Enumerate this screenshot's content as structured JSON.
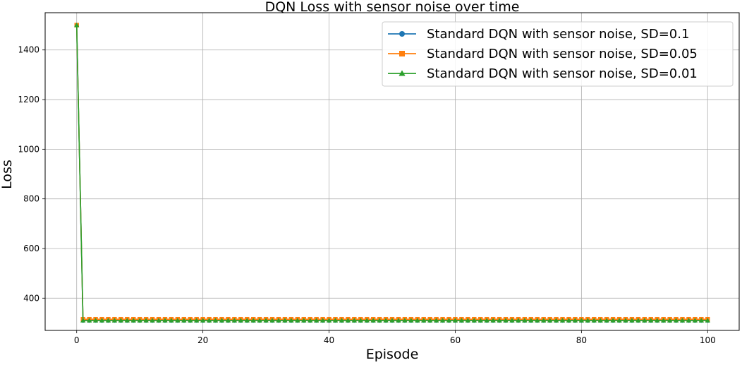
{
  "chart_data": {
    "type": "line",
    "title": "DQN Loss with sensor noise over time",
    "xlabel": "Episode",
    "ylabel": "Loss",
    "xlim": [
      -5,
      105
    ],
    "ylim": [
      270,
      1550
    ],
    "xticks": [
      0,
      20,
      40,
      60,
      80,
      100
    ],
    "yticks": [
      400,
      600,
      800,
      1000,
      1200,
      1400
    ],
    "grid": true,
    "legend_position": "top-right",
    "series": [
      {
        "name": "Standard DQN with sensor noise, SD=0.1",
        "color": "#1f77b4",
        "marker": "circle",
        "x_start": 0,
        "x_end": 100,
        "first_value": 1500,
        "steady_value": 310
      },
      {
        "name": "Standard DQN with sensor noise, SD=0.05",
        "color": "#ff7f0e",
        "marker": "square",
        "x_start": 0,
        "x_end": 100,
        "first_value": 1500,
        "steady_value": 315
      },
      {
        "name": "Standard DQN with sensor noise, SD=0.01",
        "color": "#2ca02c",
        "marker": "triangle",
        "x_start": 0,
        "x_end": 100,
        "first_value": 1500,
        "steady_value": 310
      }
    ]
  }
}
